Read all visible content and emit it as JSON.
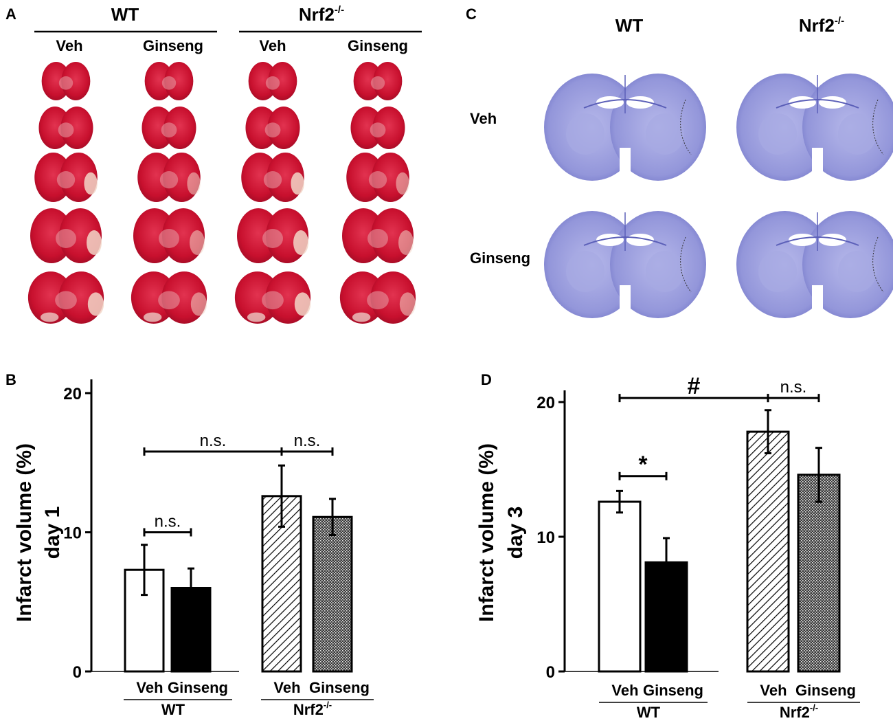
{
  "panels": {
    "A": {
      "letter": "A",
      "group_wt": "WT",
      "group_nrf2": "Nrf2",
      "nrf2_sup": "-/-",
      "col_veh": "Veh",
      "col_ginseng": "Ginseng"
    },
    "C": {
      "letter": "C",
      "col_wt": "WT",
      "col_nrf2": "Nrf2",
      "nrf2_sup": "-/-",
      "row_veh": "Veh",
      "row_ginseng": "Ginseng"
    },
    "B": {
      "letter": "B"
    },
    "D": {
      "letter": "D"
    }
  },
  "colors": {
    "ttc_red": "#c8102e",
    "ttc_pale": "#f2d6c8",
    "nissl": "#8b8fd6",
    "nissl_dark": "#5b5fb8"
  },
  "chart_data": [
    {
      "type": "bar",
      "panel": "B",
      "ylabel_line1": "Infarct volume (%)",
      "ylabel_line2": "day 1",
      "ylim": [
        0,
        20
      ],
      "yticks": [
        "0",
        "10",
        "20"
      ],
      "groups": [
        {
          "name": "WT",
          "sup": "",
          "cat1": "Veh",
          "cat2": "Ginseng"
        },
        {
          "name": "Nrf2",
          "sup": "-/-",
          "cat1": "Veh",
          "cat2": "Ginseng"
        }
      ],
      "bars": [
        {
          "label": "WT Veh",
          "value": 7.3,
          "error": 1.8,
          "fill": "white"
        },
        {
          "label": "WT Ginseng",
          "value": 6.0,
          "error": 1.4,
          "fill": "black"
        },
        {
          "label": "Nrf2 Veh",
          "value": 12.6,
          "error": 2.2,
          "fill": "hatch"
        },
        {
          "label": "Nrf2 Ginseng",
          "value": 11.1,
          "error": 1.3,
          "fill": "dots"
        }
      ],
      "annotations": [
        {
          "text": "n.s.",
          "from": 0,
          "to": 1,
          "level": 10.0
        },
        {
          "text": "n.s.",
          "from": 0,
          "to": 2,
          "level": 15.8
        },
        {
          "text": "n.s.",
          "from": 2,
          "to": 3,
          "level": 15.8
        }
      ]
    },
    {
      "type": "bar",
      "panel": "D",
      "ylabel_line1": "Infarct volume (%)",
      "ylabel_line2": "day 3",
      "ylim": [
        0,
        20
      ],
      "yticks": [
        "0",
        "10",
        "20"
      ],
      "groups": [
        {
          "name": "WT",
          "sup": "",
          "cat1": "Veh",
          "cat2": "Ginseng"
        },
        {
          "name": "Nrf2",
          "sup": "-/-",
          "cat1": "Veh",
          "cat2": "Ginseng"
        }
      ],
      "bars": [
        {
          "label": "WT Veh",
          "value": 12.6,
          "error": 0.8,
          "fill": "white"
        },
        {
          "label": "WT Ginseng",
          "value": 8.1,
          "error": 1.8,
          "fill": "black"
        },
        {
          "label": "Nrf2 Veh",
          "value": 17.8,
          "error": 1.6,
          "fill": "hatch"
        },
        {
          "label": "Nrf2 Ginseng",
          "value": 14.6,
          "error": 2.0,
          "fill": "dots"
        }
      ],
      "annotations": [
        {
          "text": "*",
          "from": 0,
          "to": 1,
          "level": 14.5
        },
        {
          "text": "#",
          "from": 0,
          "to": 2,
          "level": 20.3
        },
        {
          "text": "n.s.",
          "from": 2,
          "to": 3,
          "level": 20.3
        }
      ]
    }
  ]
}
